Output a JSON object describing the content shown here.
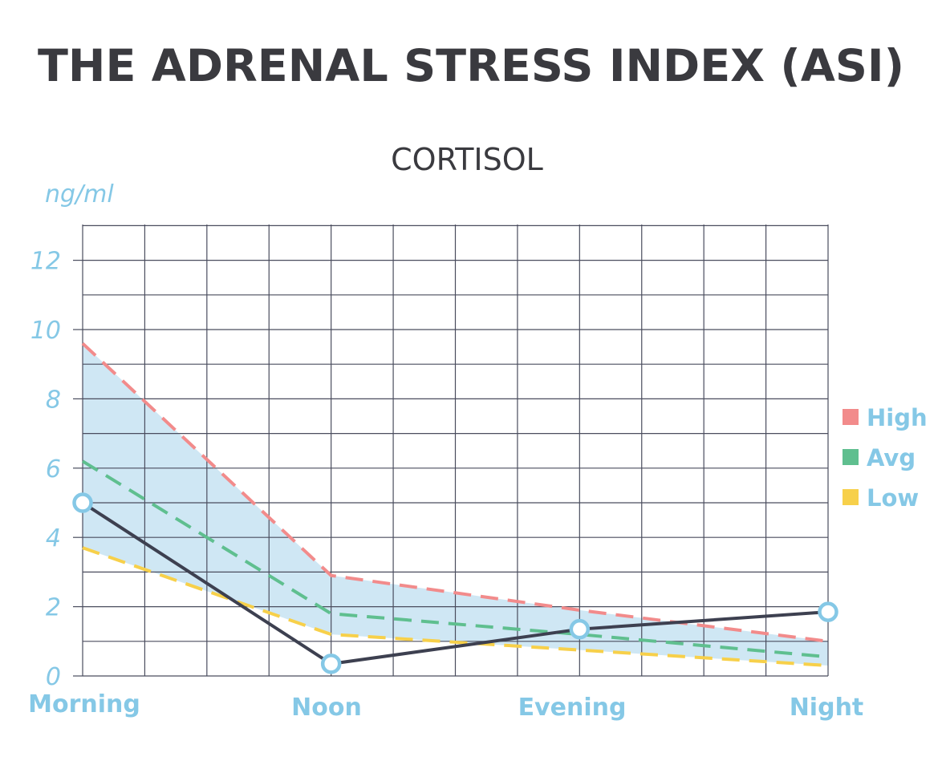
{
  "chart_data": {
    "type": "line",
    "title": "THE ADRENAL STRESS INDEX (ASI)",
    "subtitle": "CORTISOL",
    "ylabel": "ng/ml",
    "ylim": [
      0,
      13
    ],
    "yticks": [
      0,
      2,
      4,
      6,
      8,
      10,
      12
    ],
    "categories": [
      "Morning",
      "Noon",
      "Evening",
      "Night"
    ],
    "grid": true,
    "legend_position": "right",
    "series": [
      {
        "name": "High",
        "values": [
          9.6,
          2.9,
          1.9,
          1.0
        ],
        "color": "#f28b8b",
        "style": "dashed"
      },
      {
        "name": "Avg",
        "values": [
          6.2,
          1.8,
          1.2,
          0.55
        ],
        "color": "#5fbf8f",
        "style": "dashed"
      },
      {
        "name": "Low",
        "values": [
          3.7,
          1.2,
          0.75,
          0.3
        ],
        "color": "#f7d04a",
        "style": "dashed"
      },
      {
        "name": "",
        "values": [
          5.0,
          0.35,
          1.35,
          1.85
        ],
        "color": "#3d4050",
        "style": "solid",
        "markers": true
      }
    ],
    "band_color": "#cfe7f4",
    "axis_label_color": "#85c8e6",
    "grid_color": "#4a4d5e",
    "title_color": "#3a3a3f"
  }
}
